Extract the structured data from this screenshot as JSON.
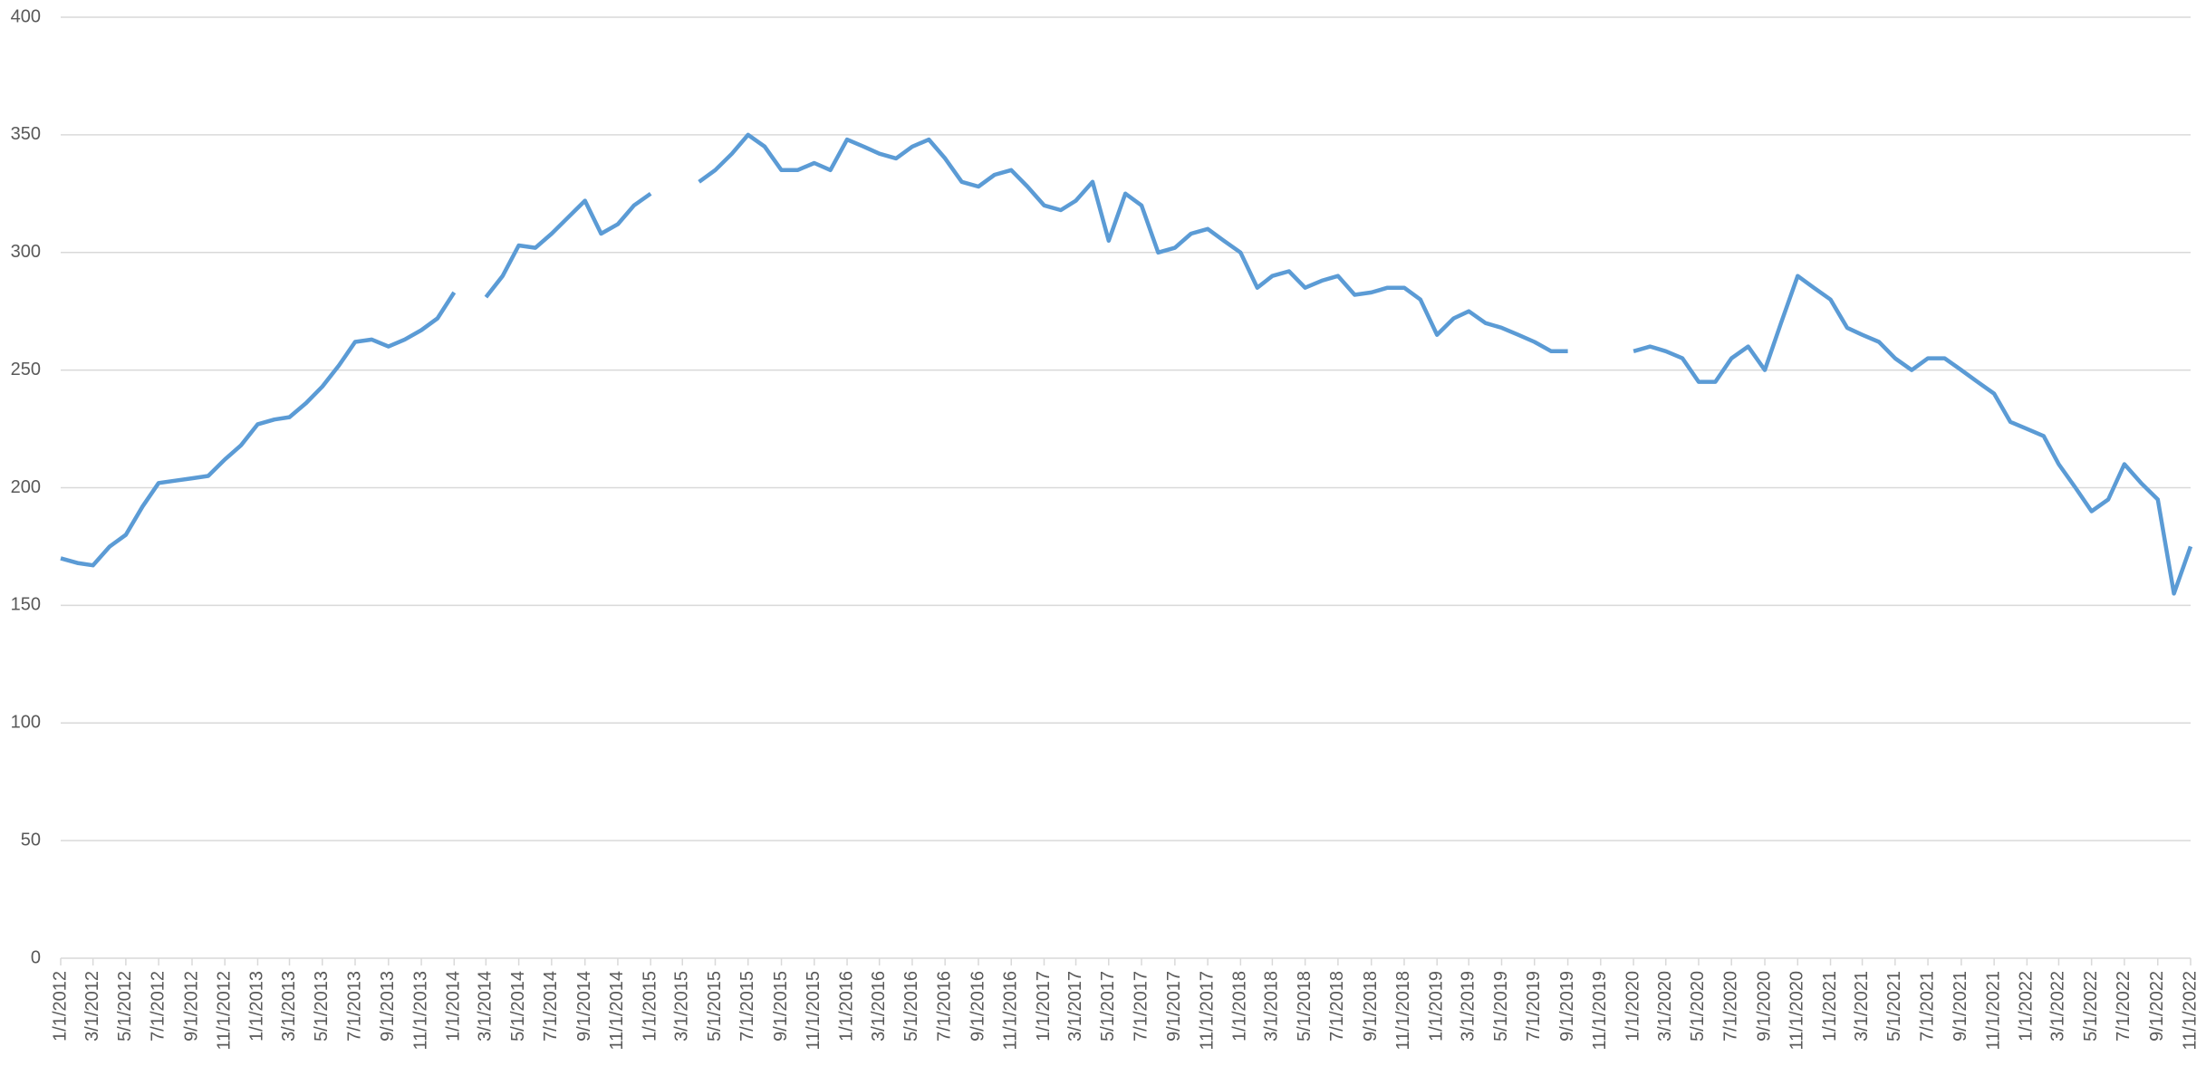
{
  "chart_data": {
    "type": "line",
    "x": [
      "1/1/2012",
      "2/1/2012",
      "3/1/2012",
      "4/1/2012",
      "5/1/2012",
      "6/1/2012",
      "7/1/2012",
      "8/1/2012",
      "9/1/2012",
      "10/1/2012",
      "11/1/2012",
      "12/1/2012",
      "1/1/2013",
      "2/1/2013",
      "3/1/2013",
      "4/1/2013",
      "5/1/2013",
      "6/1/2013",
      "7/1/2013",
      "8/1/2013",
      "9/1/2013",
      "10/1/2013",
      "11/1/2013",
      "12/1/2013",
      "1/1/2014",
      "2/1/2014",
      "3/1/2014",
      "4/1/2014",
      "5/1/2014",
      "6/1/2014",
      "7/1/2014",
      "8/1/2014",
      "9/1/2014",
      "10/1/2014",
      "11/1/2014",
      "12/1/2014",
      "1/1/2015",
      "2/1/2015",
      "3/1/2015",
      "4/1/2015",
      "5/1/2015",
      "6/1/2015",
      "7/1/2015",
      "8/1/2015",
      "9/1/2015",
      "10/1/2015",
      "11/1/2015",
      "12/1/2015",
      "1/1/2016",
      "2/1/2016",
      "3/1/2016",
      "4/1/2016",
      "5/1/2016",
      "6/1/2016",
      "7/1/2016",
      "8/1/2016",
      "9/1/2016",
      "10/1/2016",
      "11/1/2016",
      "12/1/2016",
      "1/1/2017",
      "2/1/2017",
      "3/1/2017",
      "4/1/2017",
      "5/1/2017",
      "6/1/2017",
      "7/1/2017",
      "8/1/2017",
      "9/1/2017",
      "10/1/2017",
      "11/1/2017",
      "12/1/2017",
      "1/1/2018",
      "2/1/2018",
      "3/1/2018",
      "4/1/2018",
      "5/1/2018",
      "6/1/2018",
      "7/1/2018",
      "8/1/2018",
      "9/1/2018",
      "10/1/2018",
      "11/1/2018",
      "12/1/2018",
      "1/1/2019",
      "2/1/2019",
      "3/1/2019",
      "4/1/2019",
      "5/1/2019",
      "6/1/2019",
      "7/1/2019",
      "8/1/2019",
      "9/1/2019",
      "10/1/2019",
      "11/1/2019",
      "12/1/2019",
      "1/1/2020",
      "2/1/2020",
      "3/1/2020",
      "4/1/2020",
      "5/1/2020",
      "6/1/2020",
      "7/1/2020",
      "8/1/2020",
      "9/1/2020",
      "10/1/2020",
      "11/1/2020",
      "12/1/2020",
      "1/1/2021",
      "2/1/2021",
      "3/1/2021",
      "4/1/2021",
      "5/1/2021",
      "6/1/2021",
      "7/1/2021",
      "8/1/2021",
      "9/1/2021",
      "10/1/2021",
      "11/1/2021",
      "12/1/2021",
      "1/1/2022",
      "2/1/2022",
      "3/1/2022",
      "4/1/2022",
      "5/1/2022",
      "6/1/2022",
      "7/1/2022",
      "8/1/2022",
      "9/1/2022",
      "10/1/2022",
      "11/1/2022"
    ],
    "series": [
      {
        "color": "#5b9bd5",
        "values": [
          170,
          168,
          167,
          175,
          180,
          192,
          202,
          203,
          204,
          205,
          212,
          218,
          227,
          229,
          230,
          236,
          243,
          252,
          262,
          263,
          260,
          263,
          267,
          272,
          283,
          null,
          281,
          290,
          303,
          302,
          308,
          315,
          322,
          308,
          312,
          320,
          325,
          null,
          null,
          330,
          335,
          342,
          350,
          345,
          335,
          335,
          338,
          335,
          348,
          345,
          342,
          340,
          345,
          348,
          340,
          330,
          328,
          333,
          335,
          328,
          320,
          318,
          322,
          330,
          305,
          325,
          320,
          300,
          302,
          308,
          310,
          305,
          300,
          285,
          290,
          292,
          285,
          288,
          290,
          282,
          283,
          285,
          285,
          280,
          265,
          272,
          275,
          270,
          268,
          265,
          262,
          258,
          258,
          null,
          null,
          null,
          258,
          260,
          258,
          255,
          245,
          245,
          255,
          260,
          250,
          270,
          290,
          285,
          280,
          268,
          265,
          262,
          255,
          250,
          255,
          255,
          250,
          245,
          240,
          228,
          225,
          222,
          210,
          200,
          190,
          195,
          210,
          202,
          195,
          155,
          175
        ]
      }
    ],
    "xlim": [
      "1/1/2012",
      "11/1/2022"
    ],
    "xticks": [
      "1/1/2012",
      "3/1/2012",
      "5/1/2012",
      "7/1/2012",
      "9/1/2012",
      "11/1/2012",
      "1/1/2013",
      "3/1/2013",
      "5/1/2013",
      "7/1/2013",
      "9/1/2013",
      "11/1/2013",
      "1/1/2014",
      "3/1/2014",
      "5/1/2014",
      "7/1/2014",
      "9/1/2014",
      "11/1/2014",
      "1/1/2015",
      "3/1/2015",
      "5/1/2015",
      "7/1/2015",
      "9/1/2015",
      "11/1/2015",
      "1/1/2016",
      "3/1/2016",
      "5/1/2016",
      "7/1/2016",
      "9/1/2016",
      "11/1/2016",
      "1/1/2017",
      "3/1/2017",
      "5/1/2017",
      "7/1/2017",
      "9/1/2017",
      "11/1/2017",
      "1/1/2018",
      "3/1/2018",
      "5/1/2018",
      "7/1/2018",
      "9/1/2018",
      "11/1/2018",
      "1/1/2019",
      "3/1/2019",
      "5/1/2019",
      "7/1/2019",
      "9/1/2019",
      "11/1/2019",
      "1/1/2020",
      "3/1/2020",
      "5/1/2020",
      "7/1/2020",
      "9/1/2020",
      "11/1/2020",
      "1/1/2021",
      "3/1/2021",
      "5/1/2021",
      "7/1/2021",
      "9/1/2021",
      "11/1/2021",
      "1/1/2022",
      "3/1/2022",
      "5/1/2022",
      "7/1/2022",
      "9/1/2022",
      "11/1/2022"
    ],
    "ylim": [
      0,
      400
    ],
    "yticks": [
      0,
      50,
      100,
      150,
      200,
      250,
      300,
      350,
      400
    ],
    "grid": true
  }
}
